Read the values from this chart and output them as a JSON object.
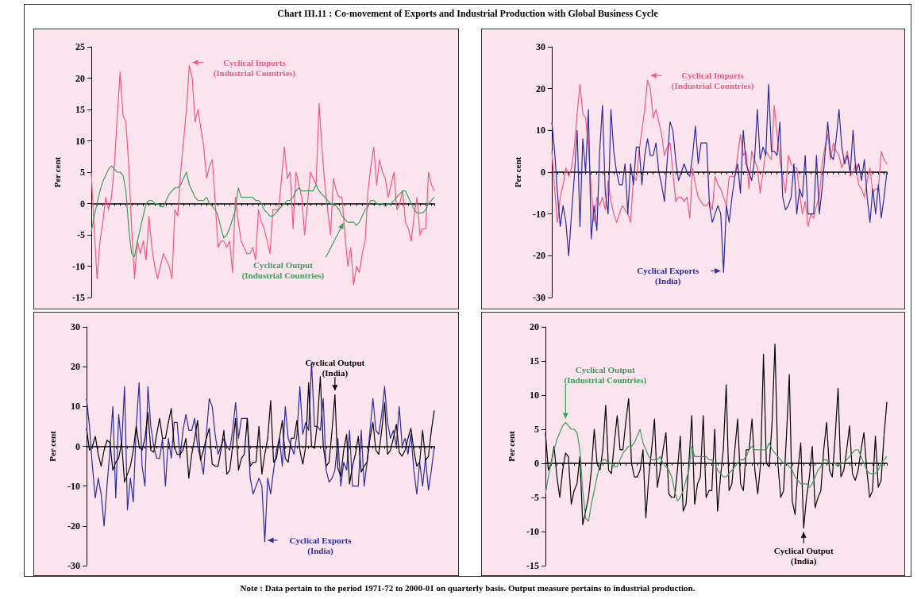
{
  "chart_data": [
    {
      "type": "line",
      "title": "Chart III.11 : Co-movement of Exports and Industrial Production with Global Business Cycle",
      "annotations": [
        "Note : Data pertain to the period 1971-72 to 2000-01 on quarterly basis. Output measure pertains to industrial production."
      ],
      "ylabel": "Per cent",
      "ylim": [
        -15,
        25
      ],
      "yticks": [
        -15,
        -10,
        -5,
        0,
        5,
        10,
        15,
        20,
        25
      ],
      "categories": [
        null,
        null,
        null,
        null,
        null,
        null,
        null,
        null,
        null,
        null,
        null,
        null,
        null,
        null,
        null,
        null,
        null,
        null,
        null,
        null,
        null,
        null,
        null,
        null,
        null,
        null,
        null,
        null,
        null,
        null,
        null,
        null,
        null,
        null,
        null,
        null,
        null,
        null,
        null,
        null,
        null,
        null,
        null,
        null,
        null,
        null,
        null,
        null,
        null,
        null,
        null,
        null,
        null,
        null,
        null,
        null,
        null,
        null,
        null,
        null,
        null,
        null,
        null,
        null,
        null,
        null,
        null,
        null,
        null,
        null,
        null,
        null,
        null,
        null,
        null,
        null,
        null,
        null,
        null,
        null,
        null,
        null,
        null,
        null,
        null,
        null,
        null,
        null,
        null,
        null,
        null,
        null,
        null,
        null,
        null,
        null,
        null,
        null,
        null,
        null,
        null,
        null,
        null,
        null,
        null,
        null,
        null,
        null,
        null,
        null,
        null,
        null,
        null,
        null,
        null,
        null,
        null,
        null,
        null,
        null
      ],
      "series": [
        {
          "name": "Cyclical Imports (Industrial Countries)",
          "color": "#f25a80",
          "values": [
            5,
            -4,
            -12,
            -6,
            -3,
            1,
            -1,
            1,
            6,
            14,
            21,
            14,
            13,
            6,
            -4,
            -12,
            -6,
            -8,
            -6,
            -9,
            -2,
            -7,
            -10,
            -12,
            -10,
            -8,
            -9,
            -10,
            -12,
            -1,
            -2,
            5,
            10,
            15,
            22,
            20,
            13,
            15,
            12,
            9,
            4,
            6,
            7,
            0,
            -7,
            -6,
            -6,
            -7,
            -6,
            -11,
            1,
            -3,
            -6,
            -7,
            -8,
            -8,
            -7,
            -9,
            -1,
            -3,
            -4,
            -6,
            -8,
            -1,
            -1,
            -1,
            4,
            9,
            4,
            5,
            -4,
            5,
            3,
            1,
            -5,
            0,
            5,
            4,
            3,
            16,
            9,
            3,
            -1,
            -5,
            4,
            2,
            1,
            1,
            -5,
            -10,
            -7,
            -13,
            -10,
            -11,
            -8,
            -6,
            2,
            6,
            9,
            3,
            7,
            5,
            4,
            1,
            3,
            5,
            -1,
            0,
            2,
            -3,
            -4,
            -6,
            -2,
            1,
            -5,
            -4,
            -4,
            5,
            3,
            2
          ]
        },
        {
          "name": "Cyclical Output (Industrial Countries)",
          "color": "#3c9e5a",
          "values": [
            -4.5,
            -2,
            0,
            2,
            3.5,
            4.5,
            5.5,
            6,
            5.5,
            5,
            5,
            4.5,
            2,
            -4,
            -8,
            -8.5,
            -6,
            -4,
            -2,
            0,
            0.5,
            0.5,
            0,
            0,
            -0.5,
            -0.5,
            0.5,
            1.5,
            2,
            2.5,
            2.5,
            3,
            4,
            5,
            3,
            2,
            1,
            0.5,
            0.5,
            0.5,
            1,
            0,
            -0.5,
            -1,
            -2,
            -4,
            -5.5,
            -5,
            -4,
            -2.5,
            -1,
            2.5,
            1,
            1,
            1,
            1,
            1,
            0.5,
            0.5,
            0,
            -1,
            -1.5,
            -2,
            -2,
            -1.5,
            -1,
            -0.5,
            0,
            0.5,
            0.5,
            1,
            2,
            2.5,
            2,
            2,
            2,
            2,
            2,
            3,
            2,
            1.5,
            1,
            0.5,
            0,
            0,
            -0.5,
            -1,
            -2,
            -2.5,
            -3,
            -3,
            -3,
            -3.5,
            -3,
            -2,
            -1,
            -0.5,
            0.5,
            0.5,
            0,
            0,
            0,
            -0.5,
            0,
            0,
            0.5,
            1,
            1.5,
            2,
            2,
            1,
            0,
            -1,
            -1.5,
            -1.5,
            -1.5,
            -1,
            0,
            0.5,
            1
          ]
        }
      ]
    },
    {
      "type": "line",
      "ylabel": "Per cent",
      "ylim": [
        -30,
        30
      ],
      "yticks": [
        -30,
        -20,
        -10,
        0,
        10,
        20,
        30
      ],
      "categories": [
        null,
        null,
        null,
        null,
        null,
        null,
        null,
        null,
        null,
        null,
        null,
        null,
        null,
        null,
        null,
        null,
        null,
        null,
        null,
        null,
        null,
        null,
        null,
        null,
        null,
        null,
        null,
        null,
        null,
        null,
        null,
        null,
        null,
        null,
        null,
        null,
        null,
        null,
        null,
        null,
        null,
        null,
        null,
        null,
        null,
        null,
        null,
        null,
        null,
        null,
        null,
        null,
        null,
        null,
        null,
        null,
        null,
        null,
        null,
        null,
        null,
        null,
        null,
        null,
        null,
        null,
        null,
        null,
        null,
        null,
        null,
        null,
        null,
        null,
        null,
        null,
        null,
        null,
        null,
        null,
        null,
        null,
        null,
        null,
        null,
        null,
        null,
        null,
        null,
        null,
        null,
        null,
        null,
        null,
        null,
        null,
        null,
        null,
        null,
        null,
        null,
        null,
        null,
        null,
        null,
        null,
        null,
        null,
        null,
        null,
        null,
        null,
        null,
        null,
        null,
        null,
        null,
        null,
        null,
        null
      ],
      "series": [
        {
          "name": "Cyclical Imports (Industrial Countries)",
          "color": "#f25a80",
          "values": [
            5,
            -4,
            -12,
            -6,
            -3,
            1,
            -1,
            1,
            6,
            14,
            21,
            14,
            13,
            6,
            -4,
            -12,
            -6,
            -8,
            -6,
            -9,
            -2,
            -7,
            -10,
            -12,
            -10,
            -8,
            -9,
            -10,
            -12,
            -1,
            -2,
            5,
            10,
            15,
            22,
            20,
            13,
            15,
            12,
            9,
            4,
            6,
            7,
            0,
            -7,
            -6,
            -6,
            -7,
            -6,
            -11,
            1,
            -3,
            -6,
            -7,
            -8,
            -8,
            -7,
            -9,
            -1,
            -3,
            -4,
            -6,
            -8,
            -1,
            -1,
            -1,
            4,
            9,
            4,
            5,
            -4,
            5,
            3,
            1,
            -5,
            0,
            5,
            4,
            3,
            16,
            9,
            3,
            -1,
            -5,
            4,
            2,
            1,
            1,
            -5,
            -10,
            -7,
            -13,
            -10,
            -11,
            -8,
            -6,
            2,
            6,
            9,
            3,
            7,
            5,
            4,
            1,
            3,
            5,
            -1,
            0,
            2,
            -3,
            -4,
            -6,
            -2,
            1,
            -5,
            -4,
            -4,
            5,
            3,
            2
          ]
        },
        {
          "name": "Cyclical Exports (India)",
          "color": "#2b2b9e",
          "values": [
            12,
            5,
            -5,
            -13,
            -8,
            -12,
            -20,
            -10,
            -1,
            10,
            -13,
            8,
            0,
            15,
            -16,
            -8,
            -14,
            5,
            16,
            -5,
            -10,
            15,
            5,
            0,
            -3,
            -3,
            2,
            -10,
            2,
            -3,
            6,
            6,
            -3,
            4,
            8,
            4,
            4,
            7,
            0,
            -3,
            -7,
            3,
            12,
            10,
            3,
            -2,
            0,
            2,
            0,
            -1,
            4,
            11,
            2,
            7,
            7,
            7,
            -8,
            -12,
            -10,
            -8,
            -10,
            -24,
            -8,
            -12,
            -6,
            -1,
            2,
            -5,
            10,
            2,
            0,
            -2,
            3,
            15,
            3,
            6,
            4,
            21,
            5,
            5,
            4,
            12,
            -6,
            -9,
            -8,
            -6,
            2,
            -10,
            -4,
            -6,
            4,
            -10,
            -10,
            -10,
            4,
            -10,
            -4,
            4,
            12,
            4,
            3,
            8,
            15,
            6,
            2,
            4,
            0,
            10,
            0,
            2,
            -2,
            3,
            -6,
            -12,
            -4,
            -10,
            -3,
            -11,
            -6,
            0
          ]
        }
      ]
    },
    {
      "type": "line",
      "ylabel": "Per cent",
      "ylim": [
        -30,
        30
      ],
      "yticks": [
        -30,
        -20,
        -10,
        0,
        10,
        20,
        30
      ],
      "categories": [
        null,
        null,
        null,
        null,
        null,
        null,
        null,
        null,
        null,
        null,
        null,
        null,
        null,
        null,
        null,
        null,
        null,
        null,
        null,
        null,
        null,
        null,
        null,
        null,
        null,
        null,
        null,
        null,
        null,
        null,
        null,
        null,
        null,
        null,
        null,
        null,
        null,
        null,
        null,
        null,
        null,
        null,
        null,
        null,
        null,
        null,
        null,
        null,
        null,
        null,
        null,
        null,
        null,
        null,
        null,
        null,
        null,
        null,
        null,
        null,
        null,
        null,
        null,
        null,
        null,
        null,
        null,
        null,
        null,
        null,
        null,
        null,
        null,
        null,
        null,
        null,
        null,
        null,
        null,
        null,
        null,
        null,
        null,
        null,
        null,
        null,
        null,
        null,
        null,
        null,
        null,
        null,
        null,
        null,
        null,
        null,
        null,
        null,
        null,
        null,
        null,
        null,
        null,
        null,
        null,
        null,
        null,
        null,
        null,
        null,
        null,
        null,
        null,
        null,
        null,
        null,
        null,
        null,
        null,
        null
      ],
      "series": [
        {
          "name": "Cyclical Exports (India)",
          "color": "#2b2b9e",
          "values": [
            12,
            5,
            -5,
            -13,
            -8,
            -12,
            -20,
            -10,
            -1,
            10,
            -13,
            8,
            0,
            15,
            -16,
            -8,
            -14,
            5,
            16,
            -5,
            -10,
            15,
            5,
            0,
            -3,
            -3,
            2,
            -10,
            2,
            -3,
            6,
            6,
            -3,
            4,
            8,
            4,
            4,
            7,
            0,
            -3,
            -7,
            3,
            12,
            10,
            3,
            -2,
            0,
            2,
            0,
            -1,
            4,
            11,
            2,
            7,
            7,
            7,
            -8,
            -12,
            -10,
            -8,
            -10,
            -24,
            -8,
            -12,
            -6,
            -1,
            2,
            -5,
            10,
            2,
            0,
            -2,
            3,
            15,
            3,
            6,
            4,
            21,
            5,
            5,
            4,
            12,
            -6,
            -9,
            -8,
            -6,
            2,
            -10,
            -4,
            -6,
            4,
            -10,
            -10,
            -10,
            4,
            -10,
            -4,
            4,
            12,
            4,
            3,
            8,
            15,
            6,
            2,
            4,
            0,
            10,
            0,
            2,
            -2,
            3,
            -6,
            -12,
            -4,
            -10,
            -3,
            -11,
            -6,
            0
          ]
        },
        {
          "name": "Cyclical Output (India)",
          "color": "#000000",
          "values": [
            4.5,
            -1,
            0,
            2.5,
            -2,
            -5,
            -1,
            1.5,
            1,
            -6,
            -4,
            -3,
            1,
            -9,
            -7,
            -5,
            -1,
            5,
            0,
            -1,
            2,
            8.5,
            -1,
            -1.5,
            3,
            7,
            2,
            2,
            6,
            9.5,
            0,
            -2,
            -2,
            -1,
            2,
            -8,
            -2,
            2,
            6.5,
            -3.5,
            -1,
            2,
            4.5,
            -4.5,
            -5,
            -5,
            -1,
            4,
            -7,
            -6,
            0,
            7,
            -6,
            -3,
            -2,
            7,
            -5,
            -4,
            -4,
            5,
            -7,
            -2,
            2,
            11.5,
            -4,
            -3,
            2,
            6.5,
            -3,
            -4,
            2,
            2,
            6.5,
            -1,
            -4.5,
            0,
            16,
            0,
            -0.5,
            6,
            17.5,
            0,
            -5,
            -4,
            4,
            13,
            -5.5,
            -7.5,
            -1,
            3,
            -9.5,
            -5,
            -2,
            2.5,
            -6.5,
            -5,
            -4,
            2,
            6,
            -1,
            -2,
            4,
            11,
            -2,
            -1,
            2,
            5.5,
            -1.5,
            -2.5,
            -1,
            2,
            4.5,
            -1,
            -5,
            -4,
            4,
            -3.5,
            -2.5,
            4,
            9
          ]
        }
      ]
    },
    {
      "type": "line",
      "ylabel": "Per cent",
      "ylim": [
        -15,
        20
      ],
      "yticks": [
        -15,
        -10,
        -5,
        0,
        5,
        10,
        15,
        20
      ],
      "categories": [
        null,
        null,
        null,
        null,
        null,
        null,
        null,
        null,
        null,
        null,
        null,
        null,
        null,
        null,
        null,
        null,
        null,
        null,
        null,
        null,
        null,
        null,
        null,
        null,
        null,
        null,
        null,
        null,
        null,
        null,
        null,
        null,
        null,
        null,
        null,
        null,
        null,
        null,
        null,
        null,
        null,
        null,
        null,
        null,
        null,
        null,
        null,
        null,
        null,
        null,
        null,
        null,
        null,
        null,
        null,
        null,
        null,
        null,
        null,
        null,
        null,
        null,
        null,
        null,
        null,
        null,
        null,
        null,
        null,
        null,
        null,
        null,
        null,
        null,
        null,
        null,
        null,
        null,
        null,
        null,
        null,
        null,
        null,
        null,
        null,
        null,
        null,
        null,
        null,
        null,
        null,
        null,
        null,
        null,
        null,
        null,
        null,
        null,
        null,
        null,
        null,
        null,
        null,
        null,
        null,
        null,
        null,
        null,
        null,
        null,
        null,
        null,
        null,
        null,
        null,
        null,
        null,
        null,
        null,
        null
      ],
      "series": [
        {
          "name": "Cyclical Output (India)",
          "color": "#000000",
          "values": [
            4.5,
            -1,
            0,
            2.5,
            -2,
            -5,
            -1,
            1.5,
            1,
            -6,
            -4,
            -3,
            1,
            -9,
            -7,
            -5,
            -1,
            5,
            0,
            -1,
            2,
            8.5,
            -1,
            -1.5,
            3,
            7,
            2,
            2,
            6,
            9.5,
            0,
            -2,
            -2,
            -1,
            2,
            -8,
            -2,
            2,
            6.5,
            -3.5,
            -1,
            2,
            4.5,
            -4.5,
            -5,
            -5,
            -1,
            4,
            -7,
            -6,
            0,
            7,
            -6,
            -3,
            -2,
            7,
            -5,
            -4,
            -4,
            5,
            -7,
            -2,
            2,
            11.5,
            -4,
            -3,
            2,
            6.5,
            -3,
            -4,
            2,
            2,
            6.5,
            -1,
            -4.5,
            0,
            16,
            0,
            -0.5,
            6,
            17.5,
            0,
            -5,
            -4,
            4,
            13,
            -5.5,
            -7.5,
            -1,
            3,
            -9.5,
            -5,
            -2,
            2.5,
            -6.5,
            -5,
            -4,
            2,
            6,
            -1,
            -2,
            4,
            11,
            -2,
            -1,
            2,
            5.5,
            -1.5,
            -2.5,
            -1,
            2,
            4.5,
            -1,
            -5,
            -4,
            4,
            -3.5,
            -2.5,
            4,
            9
          ]
        },
        {
          "name": "Cyclical Output (Industrial Countries)",
          "color": "#3c9e5a",
          "values": [
            -4.5,
            -2,
            0,
            2,
            3.5,
            4.5,
            5.5,
            6,
            5.5,
            5,
            5,
            4.5,
            2,
            -4,
            -8,
            -8.5,
            -6,
            -4,
            -2,
            0,
            0.5,
            0.5,
            0,
            0,
            -0.5,
            -0.5,
            0.5,
            1.5,
            2,
            2.5,
            2.5,
            3,
            4,
            5,
            3,
            2,
            1,
            0.5,
            0.5,
            0.5,
            1,
            0,
            -0.5,
            -1,
            -2,
            -4,
            -5.5,
            -5,
            -4,
            -2.5,
            -1,
            2.5,
            1,
            1,
            1,
            1,
            1,
            0.5,
            0.5,
            0,
            -1,
            -1.5,
            -2,
            -2,
            -1.5,
            -1,
            -0.5,
            0,
            0.5,
            0.5,
            1,
            2,
            2.5,
            2,
            2,
            2,
            2,
            2,
            3,
            2,
            1.5,
            1,
            0.5,
            0,
            0,
            -0.5,
            -1,
            -2,
            -2.5,
            -3,
            -3,
            -3,
            -3.5,
            -3,
            -2,
            -1,
            -0.5,
            0.5,
            0.5,
            0,
            0,
            0,
            -0.5,
            0,
            0,
            0.5,
            1,
            1.5,
            2,
            2,
            1,
            0,
            -1,
            -1.5,
            -1.5,
            -1.5,
            -1,
            0,
            0.5,
            1
          ]
        }
      ]
    }
  ]
}
